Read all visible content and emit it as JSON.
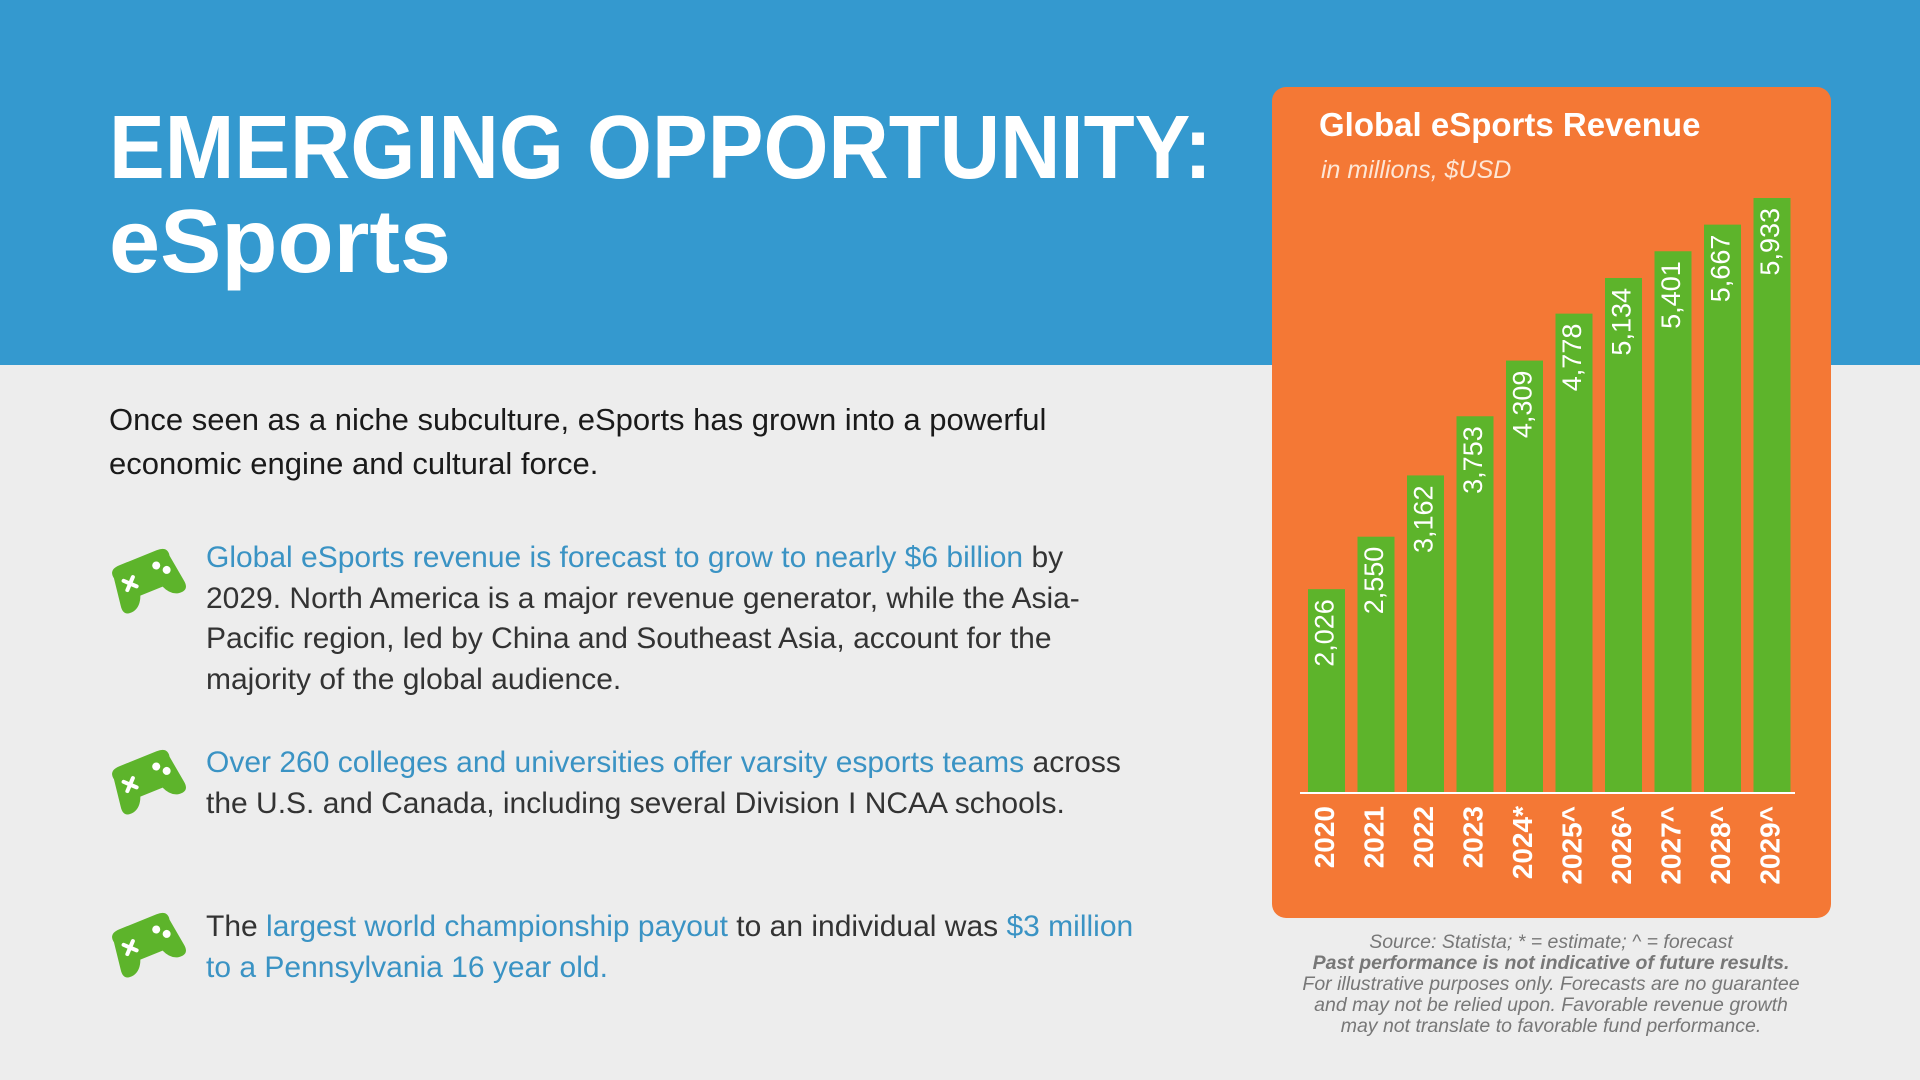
{
  "header": {
    "title": "EMERGING OPPORTUNITY:",
    "subtitle": "eSports"
  },
  "intro": "Once seen as a niche subculture, eSports has grown into a powerful economic engine and cultural force.",
  "bullets": [
    {
      "parts": [
        "Global eSports revenue is forecast to grow to nearly $6 billion",
        " by 2029. North America is a major revenue generator, while the Asia-Pacific region, led by China and Southeast Asia, account for the majority of the global audience."
      ]
    },
    {
      "parts": [
        "Over 260 colleges and universities offer varsity esports teams",
        " across the U.S. and Canada, including several Division I NCAA schools."
      ]
    },
    {
      "parts": [
        "The ",
        "largest world championship payout",
        " to an individual was ",
        "$3 million to a Pennsylvania 16 year old."
      ]
    }
  ],
  "chart_data": {
    "type": "bar",
    "title": "Global eSports Revenue",
    "subtitle": "in millions, $USD",
    "categories": [
      "2020",
      "2021",
      "2022",
      "2023",
      "2024*",
      "2025^",
      "2026^",
      "2027^",
      "2028^",
      "2029^"
    ],
    "values": [
      2026,
      2550,
      3162,
      3753,
      4309,
      4778,
      5134,
      5401,
      5667,
      5933
    ],
    "value_labels": [
      "2,026",
      "2,550",
      "3,162",
      "3,753",
      "4,309",
      "4,778",
      "5,134",
      "5,401",
      "5,667",
      "5,933"
    ],
    "color": "#5db42b"
  },
  "footnote": [
    "Source: Statista; * = estimate; ^ = forecast",
    "Past performance is not indicative of future results.",
    "For illustrative purposes only. Forecasts are no guarantee",
    "and may not be relied upon. Favorable revenue growth",
    "may not translate to favorable fund performance."
  ]
}
